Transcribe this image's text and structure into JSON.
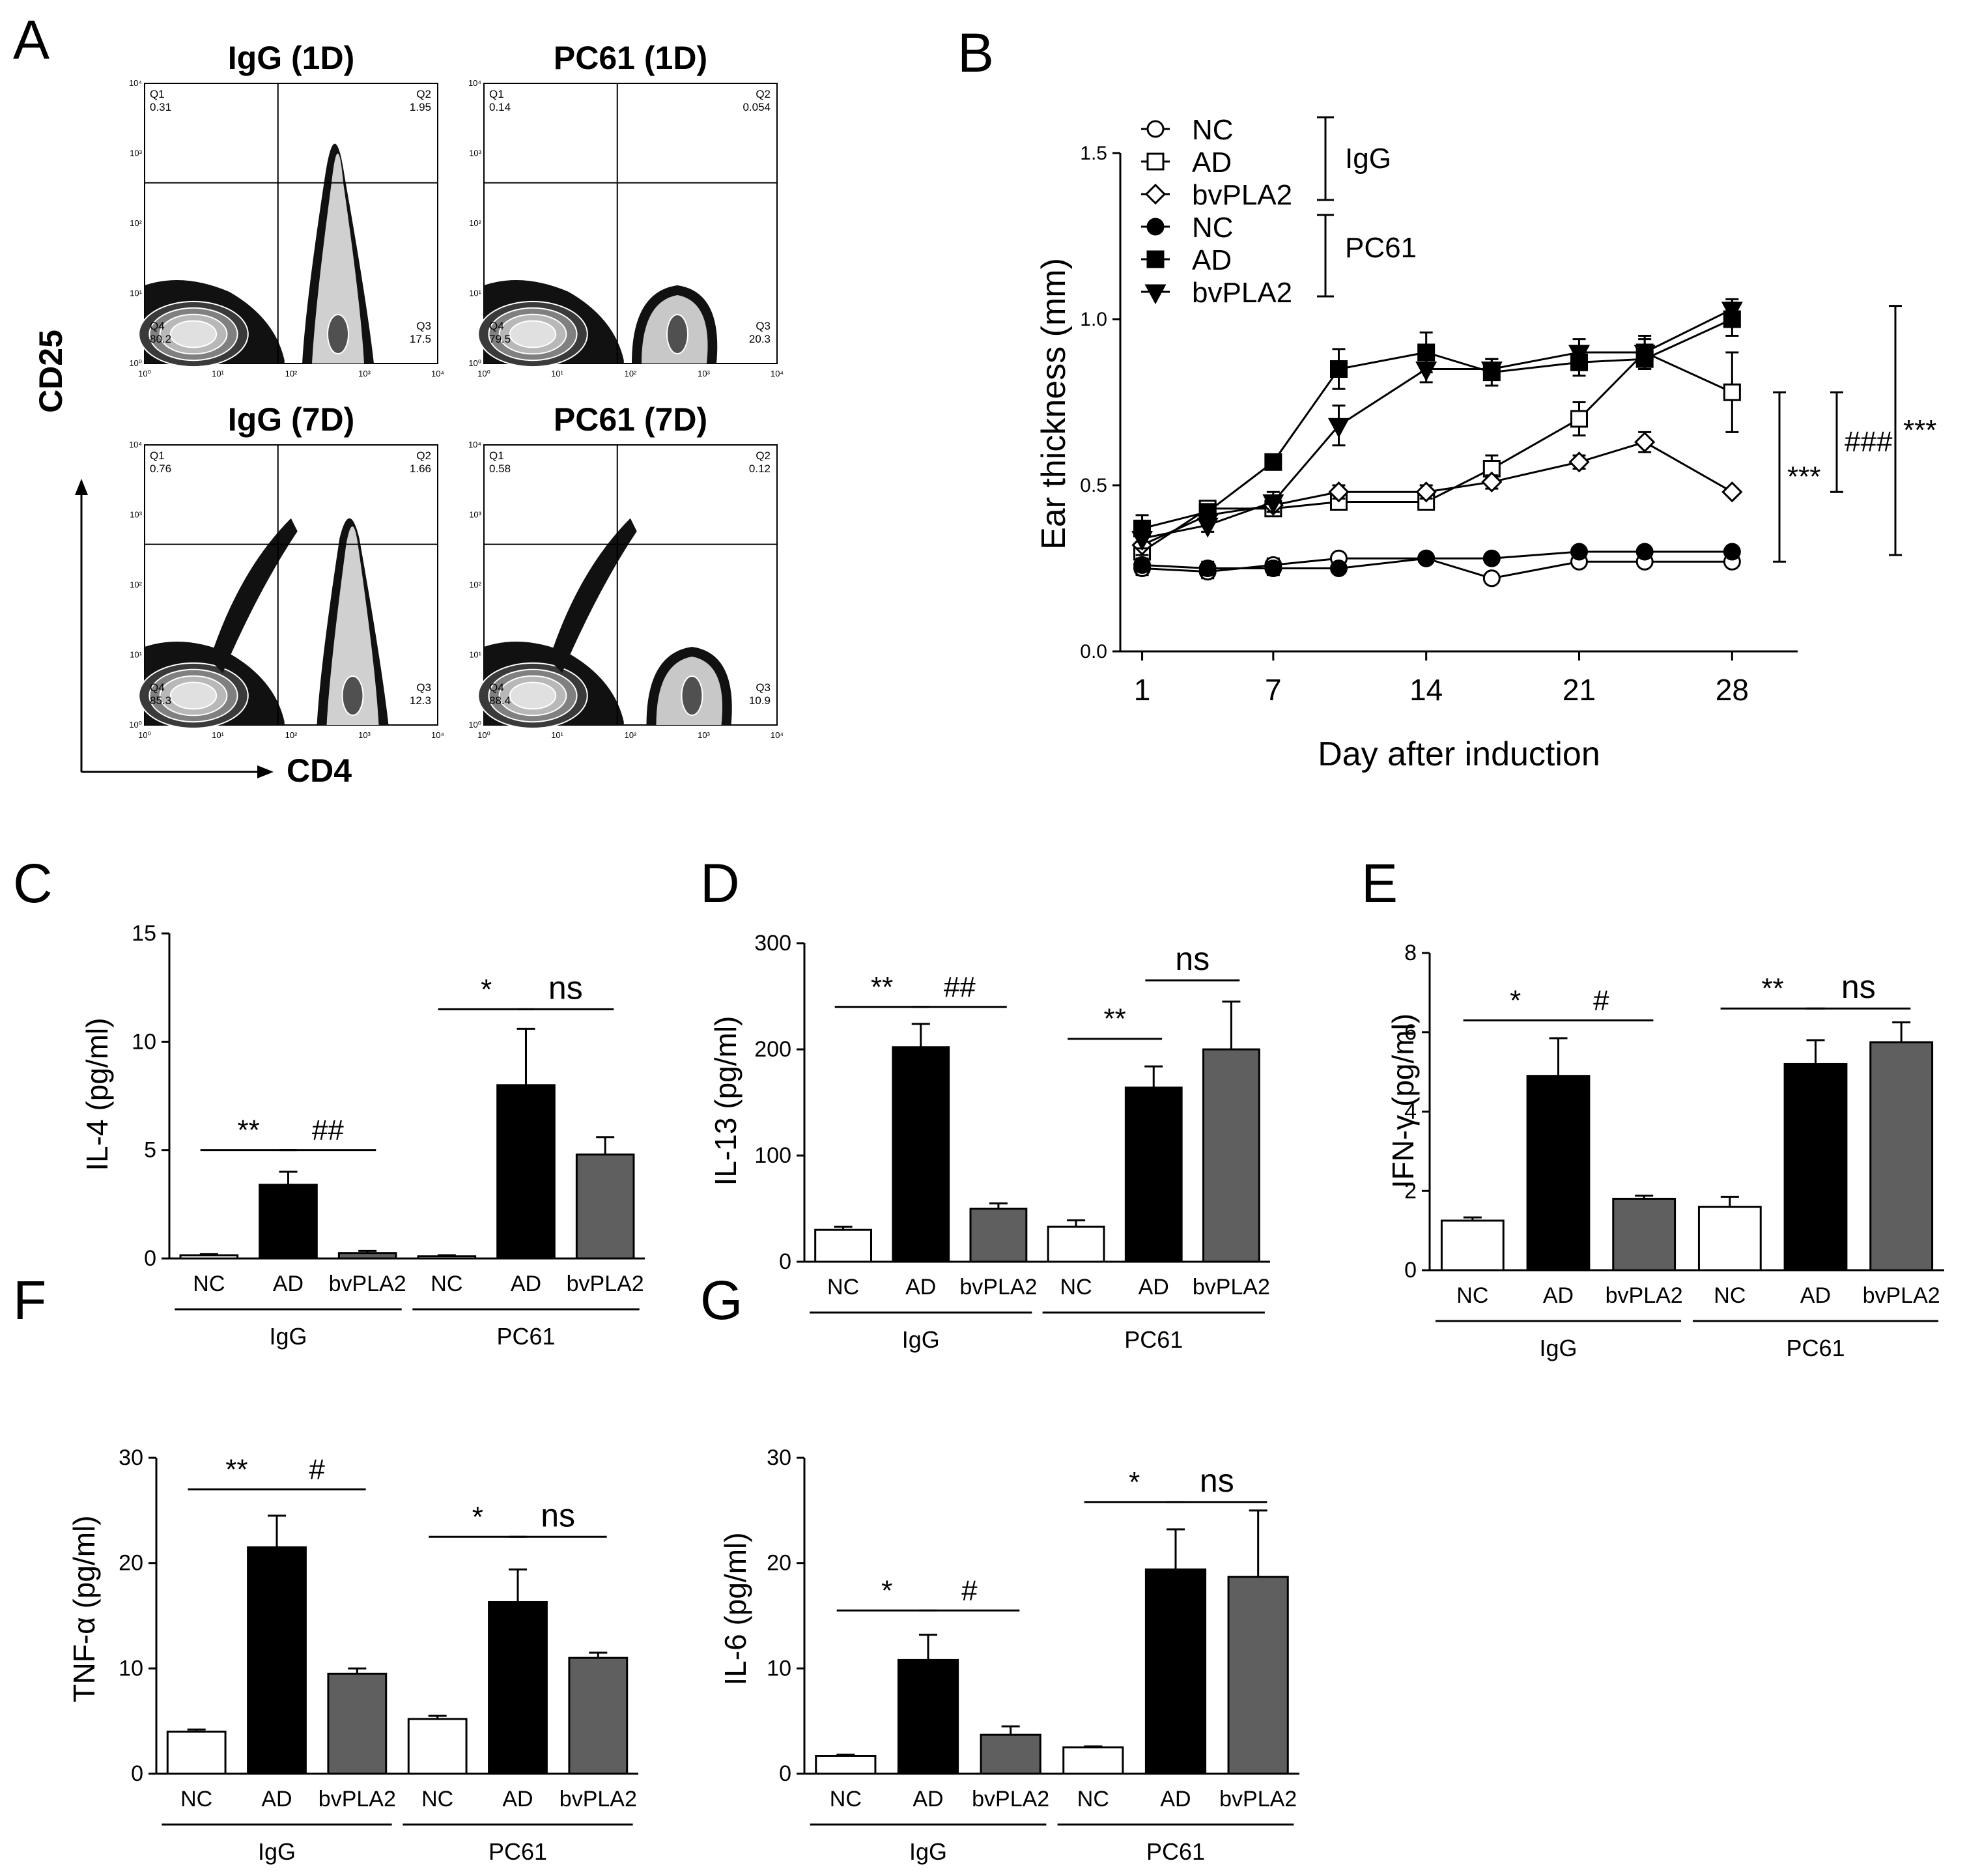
{
  "colors": {
    "NC": "#ffffff",
    "AD": "#000000",
    "bvPLA2": "#5f5f5f",
    "axis": "#000000"
  },
  "chart_data": [
    {
      "id": "A",
      "type": "other",
      "panel_label": "A",
      "description": "flow cytometry contour plots",
      "xlabel": "CD4",
      "ylabel": "CD25",
      "tick_labels": [
        "10⁰",
        "10¹",
        "10²",
        "10³",
        "10⁴"
      ],
      "plots": [
        {
          "title": "IgG (1D)",
          "Q1": {
            "label": "Q1",
            "value": "0.31"
          },
          "Q2": {
            "label": "Q2",
            "value": "1.95"
          },
          "Q3": {
            "label": "Q3",
            "value": "17.5"
          },
          "Q4": {
            "label": "Q4",
            "value": "80.2"
          }
        },
        {
          "title": "PC61 (1D)",
          "Q1": {
            "label": "Q1",
            "value": "0.14"
          },
          "Q2": {
            "label": "Q2",
            "value": "0.054"
          },
          "Q3": {
            "label": "Q3",
            "value": "20.3"
          },
          "Q4": {
            "label": "Q4",
            "value": "79.5"
          }
        },
        {
          "title": "IgG (7D)",
          "Q1": {
            "label": "Q1",
            "value": "0.76"
          },
          "Q2": {
            "label": "Q2",
            "value": "1.66"
          },
          "Q3": {
            "label": "Q3",
            "value": "12.3"
          },
          "Q4": {
            "label": "Q4",
            "value": "85.3"
          }
        },
        {
          "title": "PC61 (7D)",
          "Q1": {
            "label": "Q1",
            "value": "0.58"
          },
          "Q2": {
            "label": "Q2",
            "value": "0.12"
          },
          "Q3": {
            "label": "Q3",
            "value": "10.9"
          },
          "Q4": {
            "label": "Q4",
            "value": "88.4"
          }
        }
      ]
    },
    {
      "id": "B",
      "type": "line",
      "panel_label": "B",
      "xlabel": "Day after induction",
      "ylabel": "Ear thickness (mm)",
      "xlim": [
        0,
        31
      ],
      "ylim": [
        0,
        1.5
      ],
      "xticks": [
        1,
        7,
        14,
        21,
        28
      ],
      "yticks": [
        0.0,
        0.5,
        1.0,
        1.5
      ],
      "ytick_labels": [
        "0.0",
        "0.5",
        "1.0",
        "1.5"
      ],
      "groups": [
        {
          "label": "IgG",
          "members": [
            "NC",
            "AD",
            "bvPLA2"
          ]
        },
        {
          "label": "PC61",
          "members": [
            "NC",
            "AD",
            "bvPLA2"
          ]
        }
      ],
      "series": [
        {
          "name": "NC",
          "group": "IgG",
          "marker": "open-circle",
          "x": [
            1,
            4,
            7,
            10,
            14,
            17,
            21,
            24,
            28
          ],
          "y": [
            0.25,
            0.24,
            0.26,
            0.28,
            0.28,
            0.22,
            0.27,
            0.27,
            0.27
          ],
          "err": [
            0.02,
            0.02,
            0.02,
            0.01,
            0.01,
            0.01,
            0.01,
            0.01,
            0.01
          ]
        },
        {
          "name": "AD",
          "group": "IgG",
          "marker": "open-square",
          "x": [
            1,
            4,
            7,
            10,
            14,
            17,
            21,
            24,
            28
          ],
          "y": [
            0.3,
            0.43,
            0.43,
            0.45,
            0.45,
            0.55,
            0.7,
            0.9,
            0.78
          ],
          "err": [
            0.03,
            0.02,
            0.02,
            0.02,
            0.02,
            0.04,
            0.05,
            0.05,
            0.12
          ]
        },
        {
          "name": "bvPLA2",
          "group": "IgG",
          "marker": "open-diamond",
          "x": [
            1,
            4,
            7,
            10,
            14,
            17,
            21,
            24,
            28
          ],
          "y": [
            0.32,
            0.41,
            0.44,
            0.48,
            0.48,
            0.51,
            0.57,
            0.63,
            0.48
          ],
          "err": [
            0.03,
            0.02,
            0.02,
            0.02,
            0.02,
            0.02,
            0.02,
            0.03,
            0.01
          ]
        },
        {
          "name": "NC",
          "group": "PC61",
          "marker": "filled-circle",
          "x": [
            1,
            4,
            7,
            10,
            14,
            17,
            21,
            24,
            28
          ],
          "y": [
            0.26,
            0.25,
            0.25,
            0.25,
            0.28,
            0.28,
            0.3,
            0.3,
            0.3
          ],
          "err": [
            0.02,
            0.02,
            0.02,
            0.01,
            0.01,
            0.01,
            0.01,
            0.01,
            0.01
          ]
        },
        {
          "name": "AD",
          "group": "PC61",
          "marker": "filled-square",
          "x": [
            1,
            4,
            7,
            10,
            14,
            17,
            21,
            24,
            28
          ],
          "y": [
            0.37,
            0.42,
            0.57,
            0.85,
            0.9,
            0.84,
            0.87,
            0.88,
            1.0
          ],
          "err": [
            0.04,
            0.02,
            0.02,
            0.06,
            0.06,
            0.04,
            0.04,
            0.03,
            0.05
          ]
        },
        {
          "name": "bvPLA2",
          "group": "PC61",
          "marker": "filled-triangle-down",
          "x": [
            1,
            4,
            7,
            10,
            14,
            17,
            21,
            24,
            28
          ],
          "y": [
            0.34,
            0.38,
            0.45,
            0.68,
            0.85,
            0.85,
            0.9,
            0.9,
            1.03
          ],
          "err": [
            0.03,
            0.02,
            0.03,
            0.06,
            0.04,
            0.03,
            0.04,
            0.04,
            0.03
          ]
        }
      ],
      "significance": [
        {
          "label": "***",
          "y_from": 0.27,
          "y_to": 0.78
        },
        {
          "label": "###",
          "y_from": 0.48,
          "y_to": 0.78
        },
        {
          "label": "***",
          "y_from": 0.29,
          "y_to": 1.04
        }
      ]
    },
    {
      "id": "C",
      "type": "bar",
      "panel_label": "C",
      "ylabel": "IL-4 (pg/ml)",
      "ylim": [
        0,
        15
      ],
      "yticks": [
        0,
        5,
        10,
        15
      ],
      "categories": [
        "NC",
        "AD",
        "bvPLA2",
        "NC",
        "AD",
        "bvPLA2"
      ],
      "groups": [
        "IgG",
        "PC61"
      ],
      "values": [
        0.15,
        3.4,
        0.25,
        0.1,
        8.0,
        4.8
      ],
      "errors": [
        0.05,
        0.6,
        0.1,
        0.05,
        2.6,
        0.8
      ],
      "significance": [
        {
          "label": "**",
          "from": 0,
          "to": 1,
          "y": 5.0
        },
        {
          "label": "##",
          "from": 1,
          "to": 2,
          "y": 5.0
        },
        {
          "label": "*",
          "from": 3,
          "to": 4,
          "y": 11.5
        },
        {
          "label": "ns",
          "from": 4,
          "to": 5,
          "y": 11.5
        }
      ]
    },
    {
      "id": "D",
      "type": "bar",
      "panel_label": "D",
      "ylabel": "IL-13 (pg/ml)",
      "ylim": [
        0,
        300
      ],
      "yticks": [
        0,
        100,
        200,
        300
      ],
      "categories": [
        "NC",
        "AD",
        "bvPLA2",
        "NC",
        "AD",
        "bvPLA2"
      ],
      "groups": [
        "IgG",
        "PC61"
      ],
      "values": [
        30,
        202,
        50,
        33,
        164,
        200
      ],
      "errors": [
        3,
        22,
        5,
        6,
        20,
        45
      ],
      "significance": [
        {
          "label": "**",
          "from": 0,
          "to": 1,
          "y": 240
        },
        {
          "label": "##",
          "from": 1,
          "to": 2,
          "y": 240
        },
        {
          "label": "**",
          "from": 3,
          "to": 4,
          "y": 210
        },
        {
          "label": "ns",
          "from": 4,
          "to": 5,
          "y": 265
        }
      ]
    },
    {
      "id": "E",
      "type": "bar",
      "panel_label": "E",
      "ylabel": "IFN-γ (pg/ml)",
      "ylim": [
        0,
        8
      ],
      "yticks": [
        0,
        2,
        4,
        6,
        8
      ],
      "categories": [
        "NC",
        "AD",
        "bvPLA2",
        "NC",
        "AD",
        "bvPLA2"
      ],
      "groups": [
        "IgG",
        "PC61"
      ],
      "values": [
        1.25,
        4.9,
        1.8,
        1.6,
        5.2,
        5.75
      ],
      "errors": [
        0.08,
        0.95,
        0.08,
        0.25,
        0.6,
        0.5
      ],
      "significance": [
        {
          "label": "*",
          "from": 0,
          "to": 1,
          "y": 6.3
        },
        {
          "label": "#",
          "from": 1,
          "to": 2,
          "y": 6.3
        },
        {
          "label": "**",
          "from": 3,
          "to": 4,
          "y": 6.6
        },
        {
          "label": "ns",
          "from": 4,
          "to": 5,
          "y": 6.6
        }
      ]
    },
    {
      "id": "F",
      "type": "bar",
      "panel_label": "F",
      "ylabel": "TNF-α (pg/ml)",
      "ylim": [
        0,
        30
      ],
      "yticks": [
        0,
        10,
        20,
        30
      ],
      "categories": [
        "NC",
        "AD",
        "bvPLA2",
        "NC",
        "AD",
        "bvPLA2"
      ],
      "groups": [
        "IgG",
        "PC61"
      ],
      "values": [
        4.0,
        21.5,
        9.5,
        5.2,
        16.3,
        11.0
      ],
      "errors": [
        0.2,
        3.0,
        0.5,
        0.3,
        3.1,
        0.5
      ],
      "significance": [
        {
          "label": "**",
          "from": 0,
          "to": 1,
          "y": 27.0
        },
        {
          "label": "#",
          "from": 1,
          "to": 2,
          "y": 27.0
        },
        {
          "label": "*",
          "from": 3,
          "to": 4,
          "y": 22.5
        },
        {
          "label": "ns",
          "from": 4,
          "to": 5,
          "y": 22.5
        }
      ]
    },
    {
      "id": "G",
      "type": "bar",
      "panel_label": "G",
      "ylabel": "IL-6 (pg/ml)",
      "ylim": [
        0,
        30
      ],
      "yticks": [
        0,
        10,
        20,
        30
      ],
      "categories": [
        "NC",
        "AD",
        "bvPLA2",
        "NC",
        "AD",
        "bvPLA2"
      ],
      "groups": [
        "IgG",
        "PC61"
      ],
      "values": [
        1.7,
        10.8,
        3.7,
        2.5,
        19.4,
        18.7
      ],
      "errors": [
        0.1,
        2.4,
        0.8,
        0.1,
        3.8,
        6.3
      ],
      "significance": [
        {
          "label": "*",
          "from": 0,
          "to": 1,
          "y": 15.5
        },
        {
          "label": "#",
          "from": 1,
          "to": 2,
          "y": 15.5
        },
        {
          "label": "*",
          "from": 3,
          "to": 4,
          "y": 25.8
        },
        {
          "label": "ns",
          "from": 4,
          "to": 5,
          "y": 25.8
        }
      ]
    }
  ]
}
